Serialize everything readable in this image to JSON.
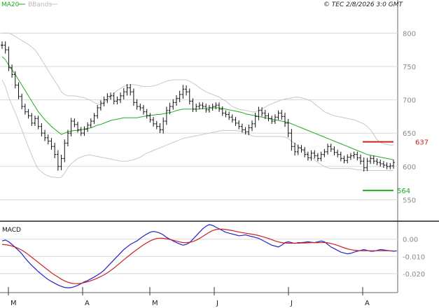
{
  "header": {
    "legend_ma": "MA20",
    "legend_bb": "BBands",
    "source": "© TEC 2/8/2026 3:0 GMT",
    "macd_label": "MACD"
  },
  "colors": {
    "ma": "#22aa22",
    "bbands": "#c8c8c8",
    "price": "#111111",
    "resistance": "#cc2222",
    "support": "#22aa22",
    "macd": "#2222cc",
    "signal": "#cc2222",
    "grid": "#d8d8d8"
  },
  "chart_data": [
    {
      "type": "ohlc",
      "panel": "price",
      "x_labels": [
        "M",
        "A",
        "M",
        "J",
        "J",
        "A"
      ],
      "y_ticks": [
        550,
        600,
        650,
        700,
        750,
        800
      ],
      "y_tick_labels": [
        "550",
        "600",
        "650",
        "700",
        "750",
        "800"
      ],
      "ylim": [
        520,
        835
      ],
      "bar_count": 120,
      "close": [
        782,
        775,
        748,
        738,
        722,
        705,
        690,
        682,
        676,
        665,
        672,
        660,
        650,
        643,
        638,
        630,
        618,
        600,
        612,
        635,
        650,
        668,
        663,
        655,
        650,
        656,
        662,
        668,
        676,
        688,
        695,
        700,
        705,
        706,
        698,
        700,
        706,
        712,
        718,
        712,
        696,
        690,
        688,
        682,
        676,
        670,
        664,
        660,
        655,
        668,
        684,
        690,
        696,
        702,
        708,
        716,
        712,
        698,
        686,
        690,
        692,
        690,
        685,
        688,
        690,
        692,
        686,
        680,
        678,
        674,
        670,
        665,
        660,
        655,
        652,
        658,
        664,
        675,
        684,
        680,
        676,
        672,
        668,
        674,
        680,
        675,
        665,
        650,
        630,
        622,
        628,
        625,
        618,
        613,
        620,
        616,
        612,
        618,
        622,
        630,
        626,
        621,
        618,
        612,
        609,
        614,
        616,
        618,
        613,
        608,
        598,
        608,
        612,
        608,
        606,
        604,
        602,
        600,
        601,
        606
      ],
      "ranges": [
        16,
        16,
        14,
        14,
        14,
        12,
        12,
        12,
        12,
        12,
        12,
        12,
        14,
        14,
        14,
        14,
        16,
        18,
        16,
        16,
        14,
        14,
        12,
        12,
        12,
        12,
        12,
        12,
        12,
        12,
        12,
        14,
        14,
        14,
        14,
        14,
        14,
        16,
        16,
        16,
        14,
        14,
        12,
        12,
        12,
        12,
        12,
        12,
        14,
        16,
        16,
        16,
        14,
        14,
        16,
        18,
        16,
        14,
        12,
        12,
        12,
        12,
        12,
        12,
        12,
        12,
        12,
        12,
        12,
        12,
        12,
        12,
        12,
        12,
        12,
        14,
        14,
        16,
        16,
        14,
        14,
        12,
        12,
        12,
        12,
        14,
        16,
        18,
        18,
        16,
        14,
        12,
        12,
        12,
        12,
        12,
        12,
        12,
        12,
        12,
        12,
        12,
        12,
        12,
        12,
        12,
        12,
        12,
        12,
        14,
        16,
        14,
        12,
        12,
        12,
        12,
        12,
        12,
        12,
        12
      ],
      "series": [
        {
          "name": "MA20",
          "values": [
            765,
            760,
            752,
            745,
            738,
            730,
            722,
            714,
            706,
            698,
            690,
            682,
            676,
            670,
            665,
            660,
            656,
            652,
            648,
            650,
            652,
            653,
            654,
            654,
            655,
            656,
            657,
            658,
            660,
            662,
            663,
            665,
            667,
            669,
            670,
            671,
            672,
            673,
            673,
            673,
            673,
            673,
            674,
            675,
            676,
            677,
            677,
            678,
            678,
            679,
            680,
            681,
            682,
            684,
            685,
            686,
            686,
            686,
            686,
            686,
            686,
            687,
            687,
            688,
            688,
            688,
            688,
            687,
            686,
            685,
            684,
            683,
            682,
            681,
            679,
            678,
            677,
            676,
            675,
            674,
            673,
            672,
            671,
            670,
            669,
            668,
            667,
            666,
            664,
            662,
            660,
            658,
            656,
            654,
            652,
            650,
            648,
            646,
            644,
            642,
            640,
            638,
            636,
            634,
            632,
            630,
            628,
            626,
            624,
            622,
            620,
            618,
            617,
            616,
            615,
            614,
            613,
            612,
            611,
            610
          ]
        },
        {
          "name": "BBands",
          "values_upper": [
            800,
            800,
            800,
            798,
            795,
            792,
            789,
            786,
            783,
            779,
            775,
            768,
            760,
            752,
            744,
            736,
            728,
            721,
            712,
            708,
            706,
            706,
            706,
            705,
            704,
            703,
            701,
            699,
            696,
            694,
            692,
            695,
            700,
            706,
            710,
            714,
            717,
            720,
            722,
            723,
            723,
            722,
            721,
            720,
            720,
            720,
            721,
            722,
            724,
            726,
            728,
            729,
            730,
            730,
            730,
            730,
            730,
            728,
            725,
            722,
            718,
            715,
            712,
            710,
            708,
            706,
            704,
            701,
            698,
            694,
            690,
            688,
            686,
            685,
            684,
            683,
            682,
            682,
            684,
            686,
            689,
            692,
            694,
            696,
            698,
            700,
            701,
            702,
            703,
            704,
            704,
            703,
            702,
            700,
            698,
            694,
            690,
            686,
            682,
            680,
            678,
            676,
            675,
            674,
            673,
            672,
            671,
            670,
            668,
            666,
            664,
            660,
            655,
            648,
            640,
            636,
            634,
            633,
            632,
            632
          ],
          "values_lower": [
            730,
            720,
            704,
            692,
            681,
            668,
            655,
            642,
            629,
            617,
            605,
            596,
            592,
            588,
            586,
            584,
            584,
            583,
            584,
            590,
            598,
            604,
            608,
            612,
            614,
            616,
            617,
            617,
            616,
            615,
            614,
            613,
            612,
            611,
            610,
            609,
            608,
            608,
            608,
            609,
            610,
            612,
            614,
            617,
            620,
            622,
            624,
            626,
            628,
            630,
            632,
            634,
            636,
            638,
            640,
            642,
            643,
            644,
            645,
            646,
            647,
            648,
            649,
            650,
            651,
            652,
            653,
            654,
            654,
            654,
            654,
            654,
            653,
            652,
            650,
            648,
            646,
            645,
            645,
            645,
            645,
            645,
            645,
            645,
            645,
            645,
            644,
            642,
            638,
            634,
            630,
            626,
            622,
            618,
            614,
            610,
            606,
            603,
            600,
            598,
            597,
            597,
            597,
            597,
            597,
            597,
            597,
            596,
            595,
            595,
            594,
            594,
            594,
            594,
            594,
            594,
            594,
            594,
            594,
            594
          ]
        }
      ],
      "levels": [
        {
          "value": 637,
          "label": "637",
          "kind": "resistance"
        },
        {
          "value": 564,
          "label": "564",
          "kind": "support"
        }
      ]
    },
    {
      "type": "line",
      "panel": "macd",
      "title": "MACD",
      "y_ticks": [
        0,
        -10,
        -20
      ],
      "y_tick_labels": [
        "0.00",
        "-0.010",
        "-0.020"
      ],
      "ylim": [
        -31,
        8
      ],
      "series": [
        {
          "name": "MACD",
          "values": [
            -1,
            -0.5,
            -1.5,
            -3,
            -4.8,
            -6.5,
            -8.5,
            -11,
            -13.2,
            -15.2,
            -17,
            -18.8,
            -20.4,
            -22,
            -23.4,
            -24.6,
            -25.6,
            -26.6,
            -27.4,
            -28,
            -28.2,
            -28.1,
            -27.6,
            -26.8,
            -25.8,
            -24.8,
            -24,
            -23,
            -22,
            -20.8,
            -19.6,
            -18,
            -16,
            -14,
            -12,
            -10,
            -8,
            -6,
            -4.5,
            -3,
            -2,
            -1,
            0.5,
            1.8,
            3,
            4,
            4.5,
            4.2,
            3.5,
            2.5,
            1,
            0,
            -1,
            -2,
            -2.8,
            -3.5,
            -3,
            -2,
            0,
            2,
            4,
            6,
            7.5,
            8.5,
            8,
            7,
            6,
            5,
            4,
            3.5,
            3,
            2.5,
            2,
            2.2,
            2.5,
            2,
            1.5,
            1,
            0.5,
            -0.5,
            -1.5,
            -2.5,
            -3.5,
            -4,
            -4.5,
            -3.5,
            -2,
            -1.5,
            -2,
            -2.5,
            -2,
            -2,
            -1.8,
            -1.5,
            -1.8,
            -2,
            -1.5,
            -1,
            -1.5,
            -3,
            -4.5,
            -5.5,
            -6.5,
            -7.5,
            -8,
            -8.5,
            -8.2,
            -7.5,
            -7,
            -6.5,
            -6,
            -6.5,
            -7,
            -7,
            -6.5,
            -6,
            -6.2,
            -6.5,
            -6.8,
            -7,
            -6.8
          ]
        },
        {
          "name": "Signal",
          "values": [
            -3,
            -3.2,
            -3.5,
            -4,
            -4.6,
            -5.4,
            -6.4,
            -7.6,
            -9,
            -10.5,
            -12,
            -13.5,
            -15,
            -16.5,
            -18,
            -19.5,
            -20.8,
            -22,
            -23.2,
            -24.2,
            -25,
            -25.5,
            -25.8,
            -25.8,
            -25.6,
            -25.2,
            -24.7,
            -24.1,
            -23.4,
            -22.6,
            -21.7,
            -20.7,
            -19.5,
            -18.2,
            -16.8,
            -15.2,
            -13.6,
            -12,
            -10.4,
            -8.9,
            -7.4,
            -6,
            -4.6,
            -3.3,
            -2.1,
            -1,
            -0.2,
            0.4,
            0.6,
            0.5,
            0.2,
            -0.2,
            -0.6,
            -1.1,
            -1.6,
            -2,
            -2,
            -1.8,
            -1.4,
            -0.6,
            0.4,
            1.6,
            2.8,
            4,
            5,
            5.6,
            5.8,
            5.8,
            5.6,
            5.3,
            5,
            4.6,
            4.2,
            3.8,
            3.5,
            3.2,
            2.9,
            2.5,
            2.1,
            1.6,
            1,
            0.4,
            -0.3,
            -1,
            -1.6,
            -2,
            -2.2,
            -2.3,
            -2.3,
            -2.3,
            -2.3,
            -2.2,
            -2.2,
            -2.1,
            -2,
            -2,
            -2,
            -1.9,
            -1.9,
            -2.1,
            -2.5,
            -3,
            -3.6,
            -4.3,
            -5,
            -5.6,
            -6.1,
            -6.4,
            -6.6,
            -6.7,
            -6.7,
            -6.7,
            -6.7,
            -6.7,
            -6.7,
            -6.7,
            -6.7,
            -6.7,
            -6.8,
            -6.8
          ]
        }
      ]
    }
  ]
}
